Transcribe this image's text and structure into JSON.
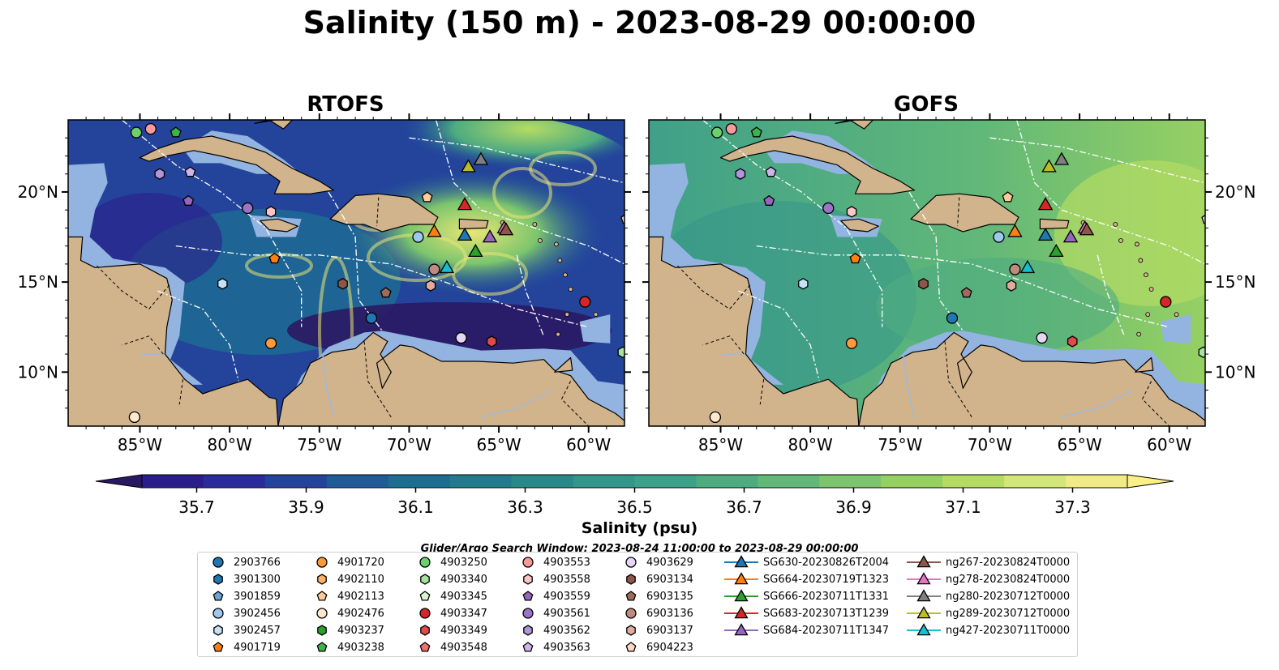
{
  "title": "Salinity (150 m) - 2023-08-29 00:00:00",
  "panels": [
    {
      "title": "RTOFS",
      "model": "rtofs"
    },
    {
      "title": "GOFS",
      "model": "gofs"
    }
  ],
  "axes": {
    "lon_ticks": [
      "85°W",
      "80°W",
      "75°W",
      "70°W",
      "65°W",
      "60°W"
    ],
    "lon_values": [
      -85,
      -80,
      -75,
      -70,
      -65,
      -60
    ],
    "lat_ticks": [
      "20°N",
      "15°N",
      "10°N"
    ],
    "lat_values": [
      20,
      15,
      10
    ],
    "lon_range": [
      -89,
      -58
    ],
    "lat_range": [
      7,
      24
    ]
  },
  "colorbar": {
    "label": "Salinity (psu)",
    "ticks": [
      "35.7",
      "35.9",
      "36.1",
      "36.3",
      "36.5",
      "36.7",
      "36.9",
      "37.1",
      "37.3"
    ],
    "range": [
      35.6,
      37.4
    ],
    "extend": "both",
    "colors": [
      "#2a1863",
      "#2c1e8a",
      "#2a2c9c",
      "#24449b",
      "#1f5b96",
      "#1d6d92",
      "#227a8c",
      "#2a8889",
      "#34958a",
      "#3fa089",
      "#4eab80",
      "#62b878",
      "#7cc56d",
      "#96d063",
      "#b4dc64",
      "#d2e679",
      "#f0eb86",
      "#fbef88"
    ]
  },
  "search_window": "Glider/Argo Search Window: 2023-08-24 11:00:00 to 2023-08-29 00:00:00",
  "colors": {
    "land": "#d2b48c",
    "shelf": "#93b4e0",
    "deep_fill": "#2f2a7a"
  },
  "legend": [
    {
      "label": "2903766",
      "marker": "circle",
      "color": "#1f77b4"
    },
    {
      "label": "3901300",
      "marker": "hexagon",
      "color": "#1f77b4"
    },
    {
      "label": "3901859",
      "marker": "pentagon",
      "color": "#6aa3d5"
    },
    {
      "label": "3902456",
      "marker": "circle",
      "color": "#9ec9ef"
    },
    {
      "label": "3902457",
      "marker": "hexagon",
      "color": "#c6e2f7"
    },
    {
      "label": "4901719",
      "marker": "pentagon",
      "color": "#ff7f0e"
    },
    {
      "label": "4901720",
      "marker": "circle",
      "color": "#ff9a3c"
    },
    {
      "label": "4902110",
      "marker": "hexagon",
      "color": "#ffb26b"
    },
    {
      "label": "4902113",
      "marker": "pentagon",
      "color": "#ffcc99"
    },
    {
      "label": "4902476",
      "marker": "circle",
      "color": "#ffe9cc"
    },
    {
      "label": "4903237",
      "marker": "hexagon",
      "color": "#2ca02c"
    },
    {
      "label": "4903238",
      "marker": "pentagon",
      "color": "#3cb44b"
    },
    {
      "label": "4903250",
      "marker": "circle",
      "color": "#6cd06c"
    },
    {
      "label": "4903340",
      "marker": "hexagon",
      "color": "#a6e3a1"
    },
    {
      "label": "4903345",
      "marker": "pentagon",
      "color": "#d8f5d0"
    },
    {
      "label": "4903347",
      "marker": "circle",
      "color": "#d62728"
    },
    {
      "label": "4903349",
      "marker": "hexagon",
      "color": "#e04a4a"
    },
    {
      "label": "4903548",
      "marker": "pentagon",
      "color": "#f07070"
    },
    {
      "label": "4903553",
      "marker": "circle",
      "color": "#f79a9a"
    },
    {
      "label": "4903558",
      "marker": "hexagon",
      "color": "#fcc6c6"
    },
    {
      "label": "4903559",
      "marker": "pentagon",
      "color": "#9467bd"
    },
    {
      "label": "4903561",
      "marker": "circle",
      "color": "#9b74c7"
    },
    {
      "label": "4903562",
      "marker": "hexagon",
      "color": "#b294d9"
    },
    {
      "label": "4903563",
      "marker": "pentagon",
      "color": "#cdb5ea"
    },
    {
      "label": "4903629",
      "marker": "circle",
      "color": "#e5d6f7"
    },
    {
      "label": "6903134",
      "marker": "hexagon",
      "color": "#8c564b"
    },
    {
      "label": "6903135",
      "marker": "pentagon",
      "color": "#a06a5c"
    },
    {
      "label": "6903136",
      "marker": "circle",
      "color": "#c08a7c"
    },
    {
      "label": "6903137",
      "marker": "hexagon",
      "color": "#e0ab9c"
    },
    {
      "label": "6904223",
      "marker": "pentagon",
      "color": "#ffd5c8"
    },
    {
      "label": "SG630-20230826T2004",
      "marker": "triangle-line",
      "color": "#1f77b4"
    },
    {
      "label": "SG664-20230719T1323",
      "marker": "triangle-line",
      "color": "#ff7f0e"
    },
    {
      "label": "SG666-20230711T1331",
      "marker": "triangle-line",
      "color": "#2ca02c"
    },
    {
      "label": "SG683-20230713T1239",
      "marker": "triangle-line",
      "color": "#d62728"
    },
    {
      "label": "SG684-20230711T1347",
      "marker": "triangle-line",
      "color": "#9467bd"
    },
    {
      "label": "ng267-20230824T0000",
      "marker": "triangle-line",
      "color": "#8c564b"
    },
    {
      "label": "ng278-20230824T0000",
      "marker": "triangle-line",
      "color": "#e377c2"
    },
    {
      "label": "ng280-20230712T0000",
      "marker": "triangle-line",
      "color": "#7f7f7f"
    },
    {
      "label": "ng289-20230712T0000",
      "marker": "triangle-line",
      "color": "#bcbd22"
    },
    {
      "label": "ng427-20230711T0000",
      "marker": "triangle-line",
      "color": "#17becf"
    }
  ],
  "platforms": [
    {
      "id": "4903250",
      "lon": -85.2,
      "lat": 23.3
    },
    {
      "id": "4903553",
      "lon": -84.4,
      "lat": 23.5
    },
    {
      "id": "4903238",
      "lon": -83.0,
      "lat": 23.3
    },
    {
      "id": "4903559",
      "lon": -82.3,
      "lat": 19.5
    },
    {
      "id": "4903563",
      "lon": -82.2,
      "lat": 21.1
    },
    {
      "id": "4903562",
      "lon": -83.9,
      "lat": 21.0
    },
    {
      "id": "4903561",
      "lon": -79.0,
      "lat": 19.1
    },
    {
      "id": "4903558",
      "lon": -77.7,
      "lat": 18.9
    },
    {
      "id": "4901719",
      "lon": -77.5,
      "lat": 16.3
    },
    {
      "id": "3902457",
      "lon": -80.4,
      "lat": 14.9
    },
    {
      "id": "6903134",
      "lon": -73.7,
      "lat": 14.9
    },
    {
      "id": "6903135",
      "lon": -71.3,
      "lat": 14.4
    },
    {
      "id": "2903766",
      "lon": -72.1,
      "lat": 13.0
    },
    {
      "id": "4901720",
      "lon": -77.7,
      "lat": 11.6
    },
    {
      "id": "4902113",
      "lon": -69.0,
      "lat": 19.7
    },
    {
      "id": "3902456",
      "lon": -69.5,
      "lat": 17.5
    },
    {
      "id": "6903136",
      "lon": -68.6,
      "lat": 15.7
    },
    {
      "id": "6903137",
      "lon": -68.8,
      "lat": 14.8
    },
    {
      "id": "4903629",
      "lon": -67.1,
      "lat": 11.9
    },
    {
      "id": "4903349",
      "lon": -65.4,
      "lat": 11.7
    },
    {
      "id": "4903347",
      "lon": -60.2,
      "lat": 13.9
    },
    {
      "id": "4903340",
      "lon": -58.1,
      "lat": 11.1
    },
    {
      "id": "6904223",
      "lon": -57.9,
      "lat": 18.5
    },
    {
      "id": "4902476",
      "lon": -85.3,
      "lat": 7.5
    },
    {
      "id": "SG664-20230719T1323",
      "lon": -68.6,
      "lat": 17.8
    },
    {
      "id": "SG683-20230713T1239",
      "lon": -66.9,
      "lat": 19.3
    },
    {
      "id": "SG630-20230826T2004",
      "lon": -66.9,
      "lat": 17.6
    },
    {
      "id": "SG666-20230711T1331",
      "lon": -66.3,
      "lat": 16.7
    },
    {
      "id": "SG684-20230711T1347",
      "lon": -65.5,
      "lat": 17.5
    },
    {
      "id": "ng278-20230824T0000",
      "lon": -64.7,
      "lat": 18.0
    },
    {
      "id": "ng267-20230824T0000",
      "lon": -64.6,
      "lat": 17.9
    },
    {
      "id": "ng289-20230712T0000",
      "lon": -66.7,
      "lat": 21.4
    },
    {
      "id": "ng280-20230712T0000",
      "lon": -66.0,
      "lat": 21.8
    },
    {
      "id": "ng427-20230711T0000",
      "lon": -67.9,
      "lat": 15.8
    }
  ]
}
